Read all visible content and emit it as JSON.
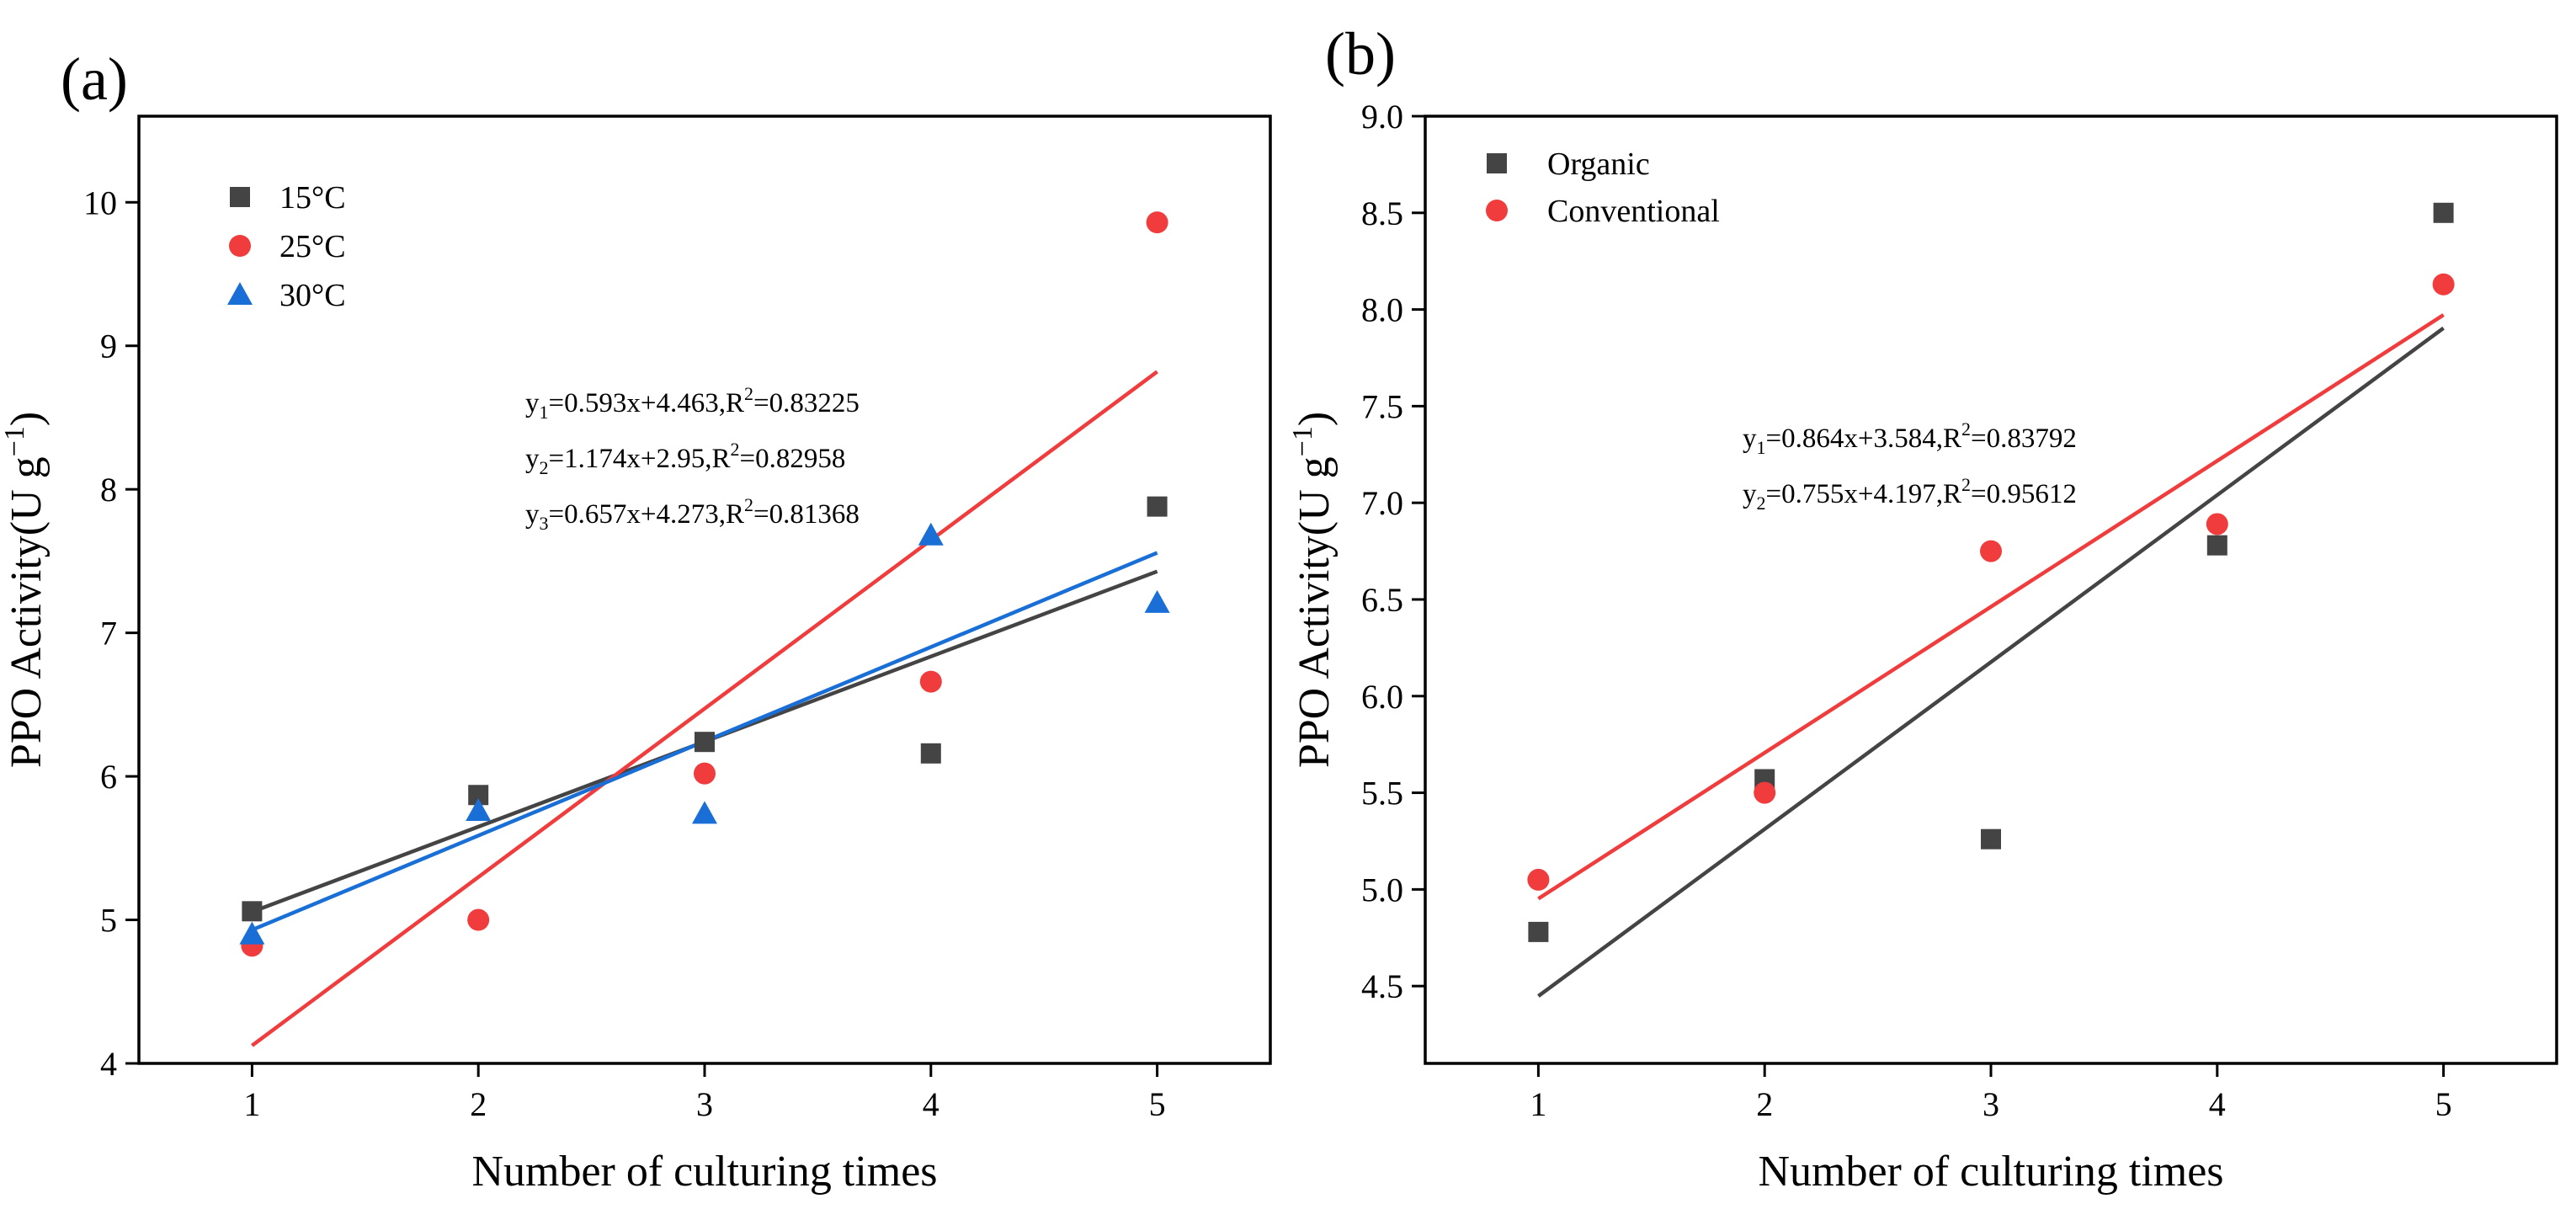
{
  "figure": {
    "panels": [
      {
        "panel_label": "(a)",
        "equations": [
          {
            "sym": "y",
            "idx": "1",
            "body": "=0.593x+4.463,R",
            "exp": "2",
            "tail": "=0.83225"
          },
          {
            "sym": "y",
            "idx": "2",
            "body": "=1.174x+2.95,R",
            "exp": "2",
            "tail": "=0.82958"
          },
          {
            "sym": "y",
            "idx": "3",
            "body": "=0.657x+4.273,R",
            "exp": "2",
            "tail": "=0.81368"
          }
        ]
      },
      {
        "panel_label": "(b)",
        "equations": [
          {
            "sym": "y",
            "idx": "1",
            "body": "=0.864x+3.584,R",
            "exp": "2",
            "tail": "=0.83792"
          },
          {
            "sym": "y",
            "idx": "2",
            "body": "=0.755x+4.197,R",
            "exp": "2",
            "tail": "=0.95612"
          }
        ]
      }
    ]
  },
  "chart_data": [
    {
      "type": "scatter",
      "title": "",
      "xlabel": "Number of culturing times",
      "ylabel_main": "PPO Activity(U g",
      "ylabel_sup": "−1",
      "ylabel_close": ")",
      "xlim": [
        0.5,
        5.5
      ],
      "ylim": [
        4,
        10.6
      ],
      "xticks": [
        "1",
        "2",
        "3",
        "4",
        "5"
      ],
      "yticks": [
        "4",
        "5",
        "6",
        "7",
        "8",
        "9",
        "10"
      ],
      "grid": false,
      "legend_position": "top-left",
      "series": [
        {
          "name": "15°C",
          "marker": "square",
          "color": "#444444",
          "x": [
            1,
            2,
            3,
            4,
            5
          ],
          "y": [
            5.06,
            5.87,
            6.24,
            6.16,
            7.88
          ],
          "fit": {
            "slope": 0.593,
            "intercept": 4.463,
            "x_range": [
              1,
              5
            ]
          }
        },
        {
          "name": "25°C",
          "marker": "circle",
          "color": "#f03c3c",
          "x": [
            1,
            2,
            3,
            4,
            5
          ],
          "y": [
            4.82,
            5.0,
            6.02,
            6.66,
            9.86
          ],
          "fit": {
            "slope": 1.174,
            "intercept": 2.95,
            "x_range": [
              1,
              5
            ]
          }
        },
        {
          "name": "30°C",
          "marker": "triangle",
          "color": "#1a6fd6",
          "x": [
            1,
            2,
            3,
            4,
            5
          ],
          "y": [
            4.9,
            5.76,
            5.74,
            7.68,
            7.21
          ],
          "fit": {
            "slope": 0.657,
            "intercept": 4.273,
            "x_range": [
              1,
              5
            ]
          }
        }
      ]
    },
    {
      "type": "scatter",
      "title": "",
      "xlabel": "Number of culturing times",
      "ylabel_main": "PPO Activity(U g",
      "ylabel_sup": "−1",
      "ylabel_close": ")",
      "xlim": [
        0.5,
        5.5
      ],
      "ylim": [
        4.1,
        9.0
      ],
      "xticks": [
        "1",
        "2",
        "3",
        "4",
        "5"
      ],
      "yticks": [
        "4.5",
        "5.0",
        "5.5",
        "6.0",
        "6.5",
        "7.0",
        "7.5",
        "8.0",
        "8.5",
        "9.0"
      ],
      "grid": false,
      "legend_position": "top-left",
      "series": [
        {
          "name": "Organic",
          "marker": "square",
          "color": "#444444",
          "x": [
            1,
            2,
            3,
            4,
            5
          ],
          "y": [
            4.78,
            5.57,
            5.26,
            6.78,
            8.5
          ],
          "fit": {
            "slope": 0.864,
            "intercept": 3.584,
            "x_range": [
              1,
              5
            ]
          }
        },
        {
          "name": "Conventional",
          "marker": "circle",
          "color": "#f03c3c",
          "x": [
            1,
            2,
            3,
            4,
            5
          ],
          "y": [
            5.05,
            5.5,
            6.75,
            6.89,
            8.13
          ],
          "fit": {
            "slope": 0.755,
            "intercept": 4.197,
            "x_range": [
              1,
              5
            ]
          }
        }
      ]
    }
  ]
}
